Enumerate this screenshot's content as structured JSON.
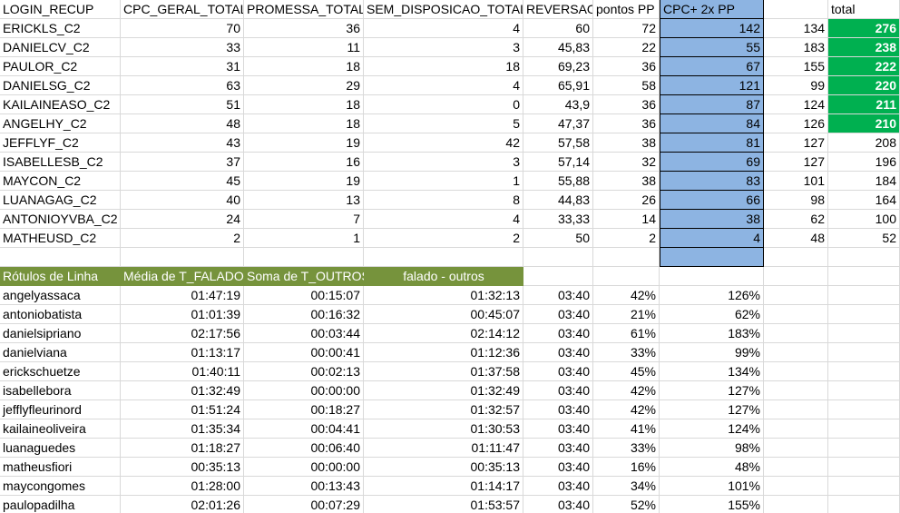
{
  "top_headers": [
    "LOGIN_RECUP",
    "CPC_GERAL_TOTAL",
    "PROMESSA_TOTAL",
    "SEM_DISPOSICAO_TOTAL",
    "REVERSAO",
    "pontos PP",
    "CPC+ 2x PP",
    "",
    "total"
  ],
  "top_rows": [
    {
      "login": "ERICKLS_C2",
      "cpc": "70",
      "promessa": "36",
      "sem": "4",
      "reversao": "60",
      "pontos": "72",
      "cpcpp": "142",
      "extra": "134",
      "total": "276",
      "green": true
    },
    {
      "login": "DANIELCV_C2",
      "cpc": "33",
      "promessa": "11",
      "sem": "3",
      "reversao": "45,83",
      "pontos": "22",
      "cpcpp": "55",
      "extra": "183",
      "total": "238",
      "green": true
    },
    {
      "login": "PAULOR_C2",
      "cpc": "31",
      "promessa": "18",
      "sem": "18",
      "reversao": "69,23",
      "pontos": "36",
      "cpcpp": "67",
      "extra": "155",
      "total": "222",
      "green": true
    },
    {
      "login": "DANIELSG_C2",
      "cpc": "63",
      "promessa": "29",
      "sem": "4",
      "reversao": "65,91",
      "pontos": "58",
      "cpcpp": "121",
      "extra": "99",
      "total": "220",
      "green": true
    },
    {
      "login": "KAILAINEASO_C2",
      "cpc": "51",
      "promessa": "18",
      "sem": "0",
      "reversao": "43,9",
      "pontos": "36",
      "cpcpp": "87",
      "extra": "124",
      "total": "211",
      "green": true
    },
    {
      "login": "ANGELHY_C2",
      "cpc": "48",
      "promessa": "18",
      "sem": "5",
      "reversao": "47,37",
      "pontos": "36",
      "cpcpp": "84",
      "extra": "126",
      "total": "210",
      "green": true
    },
    {
      "login": "JEFFLYF_C2",
      "cpc": "43",
      "promessa": "19",
      "sem": "42",
      "reversao": "57,58",
      "pontos": "38",
      "cpcpp": "81",
      "extra": "127",
      "total": "208",
      "green": false
    },
    {
      "login": "ISABELLESB_C2",
      "cpc": "37",
      "promessa": "16",
      "sem": "3",
      "reversao": "57,14",
      "pontos": "32",
      "cpcpp": "69",
      "extra": "127",
      "total": "196",
      "green": false
    },
    {
      "login": "MAYCON_C2",
      "cpc": "45",
      "promessa": "19",
      "sem": "1",
      "reversao": "55,88",
      "pontos": "38",
      "cpcpp": "83",
      "extra": "101",
      "total": "184",
      "green": false
    },
    {
      "login": "LUANAGAG_C2",
      "cpc": "40",
      "promessa": "13",
      "sem": "8",
      "reversao": "44,83",
      "pontos": "26",
      "cpcpp": "66",
      "extra": "98",
      "total": "164",
      "green": false
    },
    {
      "login": "ANTONIOYVBA_C2",
      "cpc": "24",
      "promessa": "7",
      "sem": "4",
      "reversao": "33,33",
      "pontos": "14",
      "cpcpp": "38",
      "extra": "62",
      "total": "100",
      "green": false
    },
    {
      "login": "MATHEUSD_C2",
      "cpc": "2",
      "promessa": "1",
      "sem": "2",
      "reversao": "50",
      "pontos": "2",
      "cpcpp": "4",
      "extra": "48",
      "total": "52",
      "green": false
    }
  ],
  "pivot_headers": [
    "Rótulos de Linha",
    "Média de T_FALADO",
    "Soma de T_OUTROS",
    "falado - outros"
  ],
  "pivot_rows": [
    {
      "name": "angelyassaca",
      "falado": "01:47:19",
      "outros": "00:15:07",
      "diff": "01:32:13",
      "ref": "03:40",
      "pct": "42%",
      "pct2": "126%"
    },
    {
      "name": "antoniobatista",
      "falado": "01:01:39",
      "outros": "00:16:32",
      "diff": "00:45:07",
      "ref": "03:40",
      "pct": "21%",
      "pct2": "62%"
    },
    {
      "name": "danielsipriano",
      "falado": "02:17:56",
      "outros": "00:03:44",
      "diff": "02:14:12",
      "ref": "03:40",
      "pct": "61%",
      "pct2": "183%"
    },
    {
      "name": "danielviana",
      "falado": "01:13:17",
      "outros": "00:00:41",
      "diff": "01:12:36",
      "ref": "03:40",
      "pct": "33%",
      "pct2": "99%"
    },
    {
      "name": "erickschuetze",
      "falado": "01:40:11",
      "outros": "00:02:13",
      "diff": "01:37:58",
      "ref": "03:40",
      "pct": "45%",
      "pct2": "134%"
    },
    {
      "name": "isabellebora",
      "falado": "01:32:49",
      "outros": "00:00:00",
      "diff": "01:32:49",
      "ref": "03:40",
      "pct": "42%",
      "pct2": "127%"
    },
    {
      "name": "jefflyfleurinord",
      "falado": "01:51:24",
      "outros": "00:18:27",
      "diff": "01:32:57",
      "ref": "03:40",
      "pct": "42%",
      "pct2": "127%"
    },
    {
      "name": "kailaineoliveira",
      "falado": "01:35:34",
      "outros": "00:04:41",
      "diff": "01:30:53",
      "ref": "03:40",
      "pct": "41%",
      "pct2": "124%"
    },
    {
      "name": "luanaguedes",
      "falado": "01:18:27",
      "outros": "00:06:40",
      "diff": "01:11:47",
      "ref": "03:40",
      "pct": "33%",
      "pct2": "98%"
    },
    {
      "name": "matheusfiori",
      "falado": "00:35:13",
      "outros": "00:00:00",
      "diff": "00:35:13",
      "ref": "03:40",
      "pct": "16%",
      "pct2": "48%"
    },
    {
      "name": "maycongomes",
      "falado": "01:28:00",
      "outros": "00:13:43",
      "diff": "01:14:17",
      "ref": "03:40",
      "pct": "34%",
      "pct2": "101%"
    },
    {
      "name": "paulopadilha",
      "falado": "02:01:26",
      "outros": "00:07:29",
      "diff": "01:53:57",
      "ref": "03:40",
      "pct": "52%",
      "pct2": "155%"
    }
  ],
  "colors": {
    "highlight_blue": "#8db4e2",
    "total_green": "#00b050",
    "pivot_header": "#76933c"
  }
}
